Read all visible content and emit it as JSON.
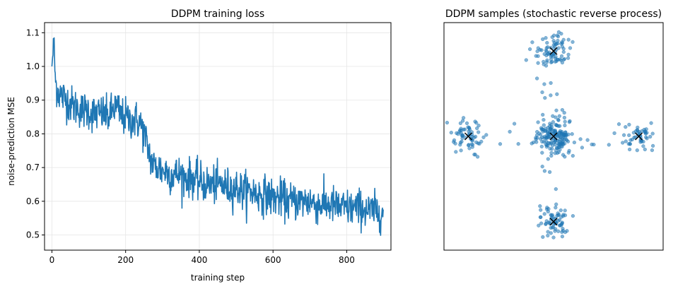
{
  "chart_data": [
    {
      "type": "line",
      "title": "DDPM training loss",
      "xlabel": "training step",
      "ylabel": "noise-prediction MSE",
      "xlim": [
        -20,
        920
      ],
      "ylim": [
        0.455,
        1.13
      ],
      "xticks": [
        0,
        200,
        400,
        600,
        800
      ],
      "yticks": [
        0.5,
        0.6,
        0.7,
        0.8,
        0.9,
        1.0,
        1.1
      ],
      "grid": true,
      "color": "#1f77b4",
      "series": [
        {
          "name": "loss",
          "x": [
            0,
            5,
            10,
            15,
            20,
            30,
            40,
            50,
            60,
            70,
            80,
            90,
            100,
            110,
            120,
            130,
            140,
            150,
            160,
            170,
            180,
            190,
            200,
            210,
            220,
            230,
            240,
            250,
            255,
            260,
            265,
            270,
            280,
            290,
            300,
            310,
            320,
            330,
            340,
            350,
            360,
            370,
            380,
            390,
            400,
            420,
            440,
            460,
            480,
            500,
            520,
            540,
            560,
            580,
            600,
            620,
            640,
            660,
            680,
            700,
            720,
            740,
            760,
            780,
            800,
            820,
            840,
            860,
            880,
            899
          ],
          "y": [
            1.0,
            1.07,
            0.95,
            0.93,
            0.92,
            0.91,
            0.9,
            0.89,
            0.88,
            0.88,
            0.87,
            0.87,
            0.87,
            0.86,
            0.86,
            0.86,
            0.86,
            0.85,
            0.86,
            0.88,
            0.87,
            0.85,
            0.85,
            0.84,
            0.84,
            0.84,
            0.83,
            0.8,
            0.78,
            0.76,
            0.74,
            0.72,
            0.7,
            0.7,
            0.69,
            0.69,
            0.68,
            0.68,
            0.68,
            0.68,
            0.67,
            0.67,
            0.67,
            0.66,
            0.66,
            0.65,
            0.65,
            0.65,
            0.64,
            0.64,
            0.63,
            0.63,
            0.62,
            0.62,
            0.61,
            0.61,
            0.6,
            0.6,
            0.6,
            0.6,
            0.59,
            0.59,
            0.59,
            0.58,
            0.58,
            0.58,
            0.58,
            0.57,
            0.57,
            0.57
          ]
        }
      ]
    },
    {
      "type": "scatter",
      "title": "DDPM samples (stochastic reverse process)",
      "xlabel": "",
      "ylabel": "",
      "xlim": [
        -2.7,
        2.7
      ],
      "ylim": [
        -2.8,
        2.8
      ],
      "grid": false,
      "point_color": "#1f77b4",
      "centers": [
        [
          0,
          0
        ],
        [
          0,
          2.1
        ],
        [
          0,
          -2.1
        ],
        [
          -2.1,
          0
        ],
        [
          2.1,
          0
        ]
      ],
      "marker": "x",
      "points_per_cluster": [
        160,
        90,
        75,
        70,
        65
      ]
    }
  ]
}
